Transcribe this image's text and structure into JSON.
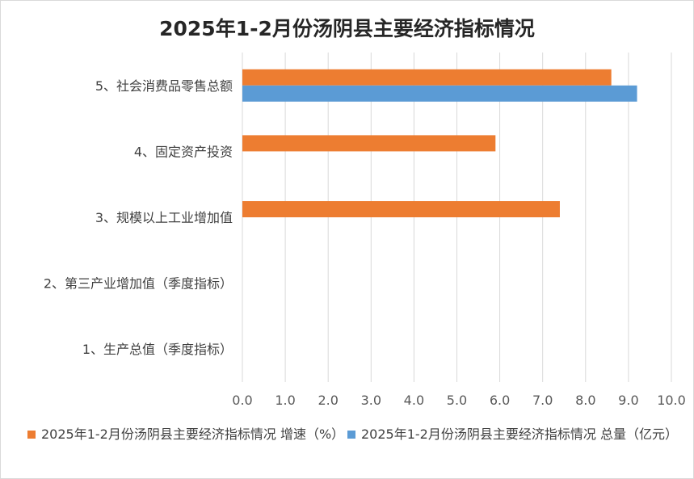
{
  "chart_data": {
    "type": "bar",
    "orientation": "horizontal",
    "title": "2025年1-2月份汤阴县主要经济指标情况",
    "categories": [
      "5、社会消费品零售总额",
      "4、固定资产投资",
      "3、规模以上工业增加值",
      "2、第三产业增加值（季度指标）",
      "1、生产总值（季度指标）"
    ],
    "series": [
      {
        "name": "2025年1-2月份汤阴县主要经济指标情况 增速（%）",
        "color": "#ed7d31",
        "values": [
          8.6,
          5.9,
          7.4,
          null,
          null
        ]
      },
      {
        "name": "2025年1-2月份汤阴县主要经济指标情况 总量（亿元）",
        "color": "#5b9bd5",
        "values": [
          9.2,
          null,
          null,
          null,
          null
        ]
      }
    ],
    "xlim": [
      0,
      10
    ],
    "xticks": [
      "0.0",
      "1.0",
      "2.0",
      "3.0",
      "4.0",
      "5.0",
      "6.0",
      "7.0",
      "8.0",
      "9.0",
      "10.0"
    ],
    "grid": true,
    "legend_position": "bottom"
  }
}
